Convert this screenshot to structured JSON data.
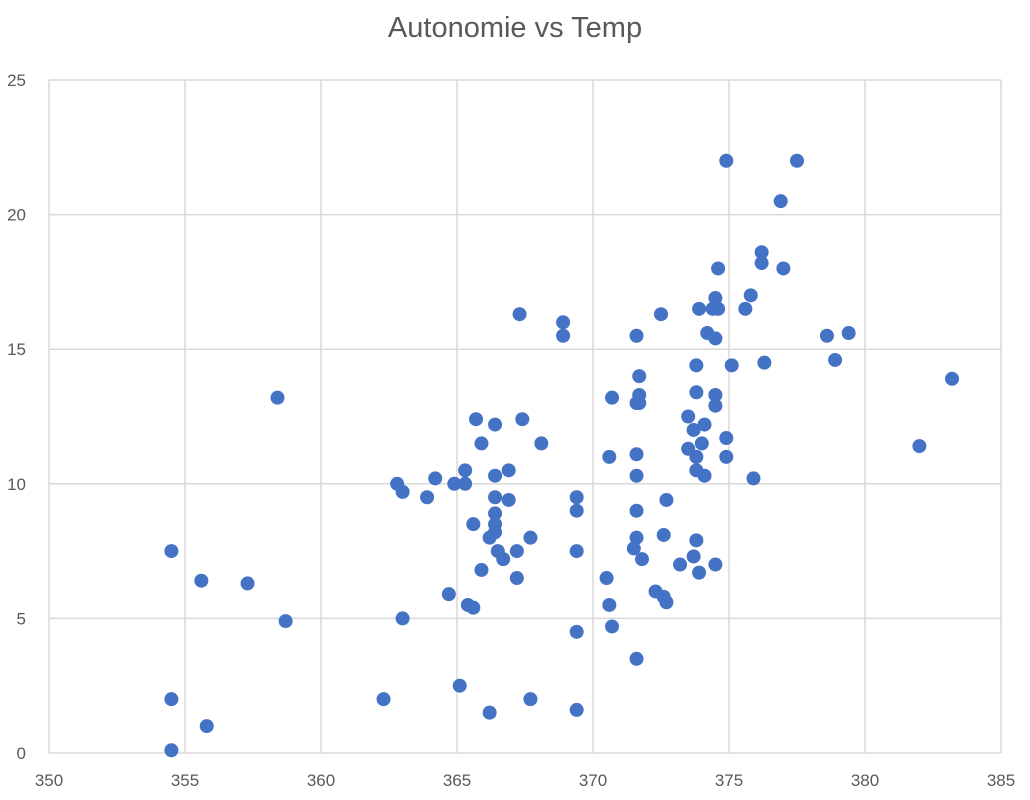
{
  "chart_data": {
    "type": "scatter",
    "title": "Autonomie vs Temp",
    "xlabel": "",
    "ylabel": "",
    "xlim": [
      350,
      385
    ],
    "ylim": [
      0,
      25
    ],
    "xticks": [
      350,
      355,
      360,
      365,
      370,
      375,
      380,
      385
    ],
    "yticks": [
      0,
      5,
      10,
      15,
      20,
      25
    ],
    "grid": true,
    "legend": null,
    "marker_color": "#4472C4",
    "series": [
      {
        "name": "Autonomie",
        "points": [
          [
            354.5,
            0.1
          ],
          [
            354.5,
            2.0
          ],
          [
            355.8,
            1.0
          ],
          [
            354.5,
            7.5
          ],
          [
            355.6,
            6.4
          ],
          [
            357.3,
            6.3
          ],
          [
            358.7,
            4.9
          ],
          [
            358.4,
            13.2
          ],
          [
            362.3,
            2.0
          ],
          [
            363.0,
            5.0
          ],
          [
            362.8,
            10.0
          ],
          [
            363.0,
            9.7
          ],
          [
            363.9,
            9.5
          ],
          [
            364.2,
            10.2
          ],
          [
            364.7,
            5.9
          ],
          [
            364.9,
            10.0
          ],
          [
            365.3,
            10.0
          ],
          [
            365.3,
            10.5
          ],
          [
            365.1,
            2.5
          ],
          [
            365.4,
            5.5
          ],
          [
            365.6,
            5.4
          ],
          [
            365.6,
            8.5
          ],
          [
            365.7,
            12.4
          ],
          [
            365.9,
            11.5
          ],
          [
            365.9,
            6.8
          ],
          [
            366.2,
            1.5
          ],
          [
            366.2,
            8.0
          ],
          [
            366.4,
            12.2
          ],
          [
            366.4,
            9.5
          ],
          [
            366.4,
            8.5
          ],
          [
            366.4,
            8.9
          ],
          [
            366.4,
            8.2
          ],
          [
            366.4,
            10.3
          ],
          [
            366.5,
            7.5
          ],
          [
            366.7,
            7.2
          ],
          [
            366.9,
            9.4
          ],
          [
            366.9,
            10.5
          ],
          [
            367.2,
            7.5
          ],
          [
            367.2,
            6.5
          ],
          [
            367.3,
            16.3
          ],
          [
            367.4,
            12.4
          ],
          [
            367.7,
            8.0
          ],
          [
            367.7,
            2.0
          ],
          [
            368.1,
            11.5
          ],
          [
            368.9,
            16.0
          ],
          [
            368.9,
            15.5
          ],
          [
            369.4,
            9.5
          ],
          [
            369.4,
            9.0
          ],
          [
            369.4,
            7.5
          ],
          [
            369.4,
            4.5
          ],
          [
            369.4,
            1.6
          ],
          [
            370.5,
            6.5
          ],
          [
            370.6,
            5.5
          ],
          [
            370.6,
            11.0
          ],
          [
            370.7,
            13.2
          ],
          [
            370.7,
            4.7
          ],
          [
            371.5,
            7.6
          ],
          [
            371.6,
            13.0
          ],
          [
            371.6,
            15.5
          ],
          [
            371.6,
            3.5
          ],
          [
            371.6,
            10.3
          ],
          [
            371.6,
            11.1
          ],
          [
            371.7,
            13.0
          ],
          [
            371.6,
            9.0
          ],
          [
            371.6,
            8.0
          ],
          [
            371.7,
            14.0
          ],
          [
            371.7,
            13.3
          ],
          [
            371.8,
            7.2
          ],
          [
            372.3,
            6.0
          ],
          [
            372.5,
            16.3
          ],
          [
            372.6,
            8.1
          ],
          [
            372.6,
            5.8
          ],
          [
            372.7,
            5.6
          ],
          [
            372.7,
            9.4
          ],
          [
            373.2,
            7.0
          ],
          [
            373.5,
            12.5
          ],
          [
            373.5,
            11.3
          ],
          [
            373.7,
            12.0
          ],
          [
            373.7,
            7.3
          ],
          [
            373.8,
            14.4
          ],
          [
            373.8,
            13.4
          ],
          [
            373.8,
            7.9
          ],
          [
            373.8,
            10.5
          ],
          [
            373.8,
            11.0
          ],
          [
            373.9,
            6.7
          ],
          [
            373.9,
            16.5
          ],
          [
            374.0,
            11.5
          ],
          [
            374.1,
            12.2
          ],
          [
            374.1,
            10.3
          ],
          [
            374.2,
            15.6
          ],
          [
            374.4,
            16.5
          ],
          [
            374.5,
            7.0
          ],
          [
            374.5,
            13.3
          ],
          [
            374.5,
            12.9
          ],
          [
            374.5,
            15.4
          ],
          [
            374.5,
            16.9
          ],
          [
            374.6,
            18.0
          ],
          [
            374.6,
            16.5
          ],
          [
            374.9,
            11.7
          ],
          [
            374.9,
            11.0
          ],
          [
            374.9,
            22.0
          ],
          [
            375.1,
            14.4
          ],
          [
            375.6,
            16.5
          ],
          [
            375.8,
            17.0
          ],
          [
            375.9,
            10.2
          ],
          [
            376.2,
            18.2
          ],
          [
            376.2,
            18.6
          ],
          [
            376.3,
            14.5
          ],
          [
            376.9,
            20.5
          ],
          [
            377.0,
            18.0
          ],
          [
            377.5,
            22.0
          ],
          [
            378.6,
            15.5
          ],
          [
            378.9,
            14.6
          ],
          [
            379.4,
            15.6
          ],
          [
            382.0,
            11.4
          ],
          [
            383.2,
            13.9
          ]
        ]
      }
    ]
  }
}
